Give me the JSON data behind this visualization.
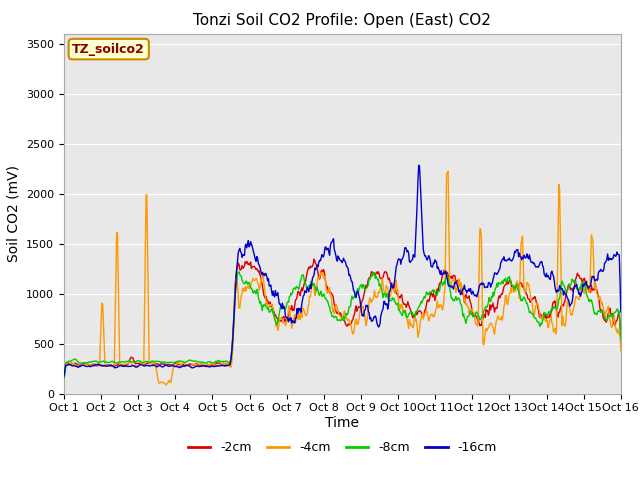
{
  "title": "Tonzi Soil CO2 Profile: Open (East) CO2",
  "ylabel": "Soil CO2 (mV)",
  "xlabel": "Time",
  "ylim": [
    0,
    3600
  ],
  "yticks": [
    0,
    500,
    1000,
    1500,
    2000,
    2500,
    3000,
    3500
  ],
  "xtick_labels": [
    "Oct 1",
    "Oct 2",
    "Oct 3",
    "Oct 4",
    "Oct 5",
    "Oct 6",
    "Oct 7",
    "Oct 8",
    "Oct 9",
    "Oct 10",
    "Oct 11",
    "Oct 12",
    "Oct 13",
    "Oct 14",
    "Oct 15",
    "Oct 16"
  ],
  "bg_color": "#e8e8e8",
  "fig_color": "#ffffff",
  "legend_label": "TZ_soilco2",
  "legend_box_facecolor": "#ffffcc",
  "legend_box_edgecolor": "#cc8800",
  "legend_text_color": "#880000",
  "series_labels": [
    "-2cm",
    "-4cm",
    "-8cm",
    "-16cm"
  ],
  "series_colors": [
    "#dd0000",
    "#ff9900",
    "#00cc00",
    "#0000cc"
  ],
  "line_width": 1.0,
  "title_fontsize": 11,
  "axis_fontsize": 10,
  "tick_fontsize": 8,
  "legend_fontsize": 9
}
